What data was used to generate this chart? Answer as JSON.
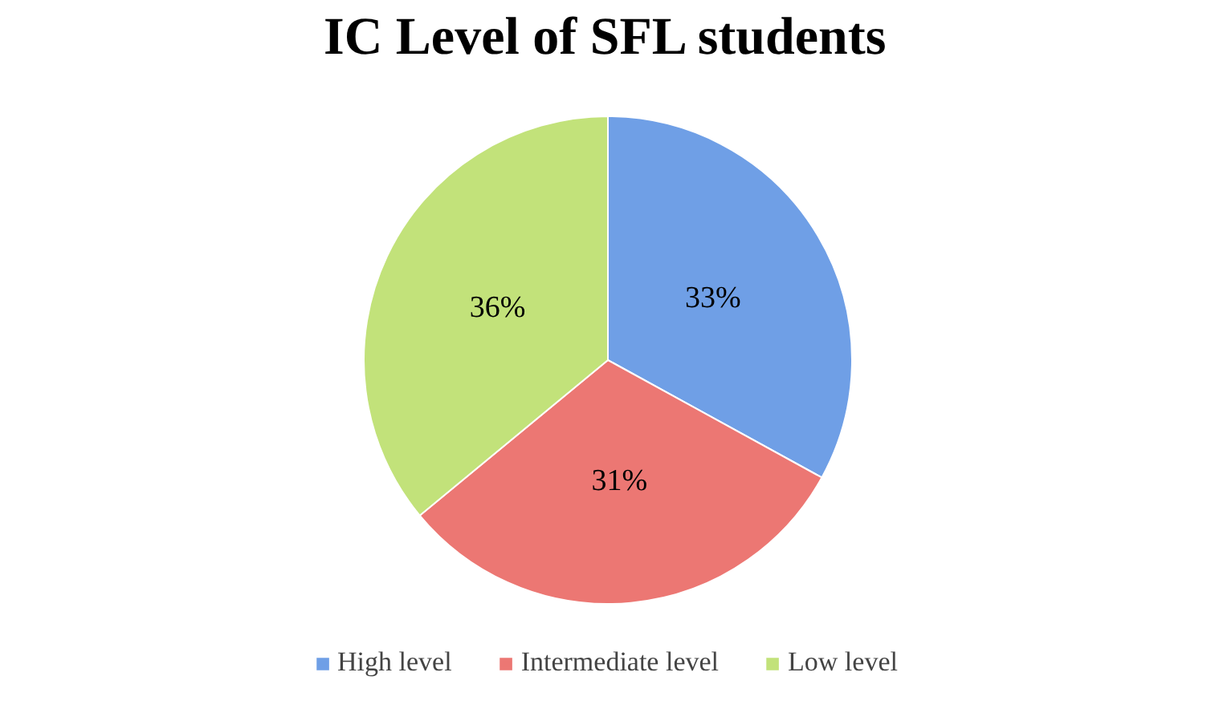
{
  "chart_data": {
    "type": "pie",
    "title": "IC Level of SFL students",
    "categories": [
      "High level",
      "Intermediate level",
      "Low level"
    ],
    "values": [
      33,
      31,
      36
    ],
    "colors": [
      "#6f9fe6",
      "#ec7773",
      "#c2e27a"
    ],
    "value_labels": [
      "33%",
      "31%",
      "36%"
    ],
    "legend": "bottom"
  }
}
